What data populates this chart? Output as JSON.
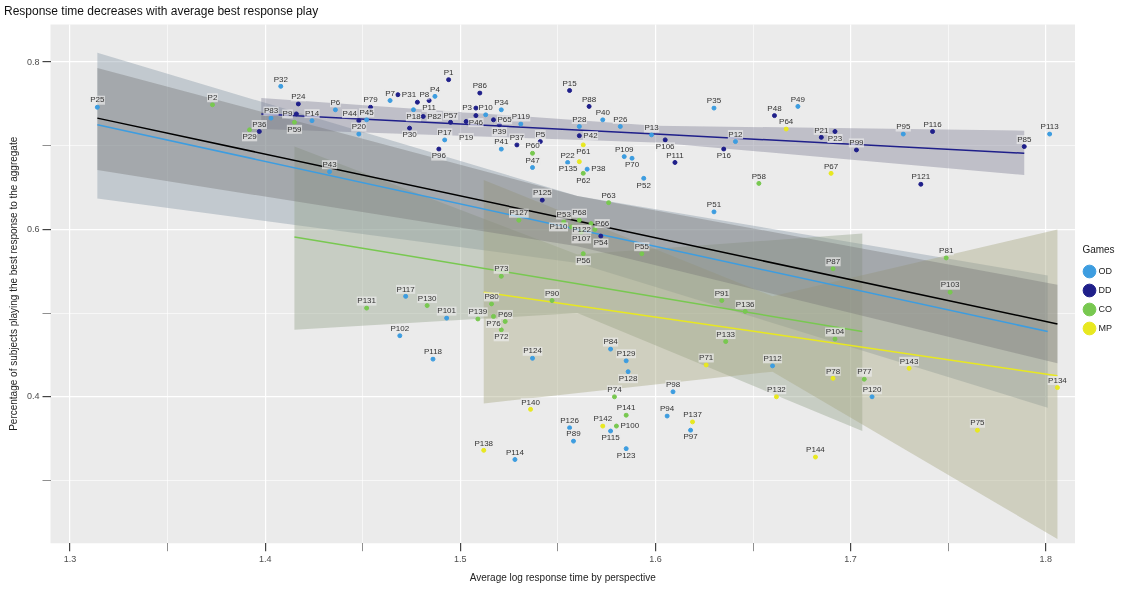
{
  "chart_data": {
    "type": "scatter",
    "title": "Response time decreases with average best response play",
    "xlabel": "Average log response time by perspective",
    "ylabel": "Percentage of subjects playing the best response to the aggregate",
    "legend_title": "Games",
    "legend": "right",
    "grid": true,
    "marker": "circle",
    "xlim": [
      1.29,
      1.815
    ],
    "xticks": [
      1.3,
      {
        "value": 1.35,
        "label": null
      },
      1.4,
      {
        "value": 1.45,
        "label": null
      },
      1.5,
      {
        "value": 1.55,
        "label": null
      },
      1.6,
      {
        "value": 1.65,
        "label": null
      },
      1.7,
      {
        "value": 1.75,
        "label": null
      },
      1.8
    ],
    "ylim": [
      0.225,
      0.845
    ],
    "yticks": [
      {
        "value": 0.3,
        "label": null
      },
      0.4,
      {
        "value": 0.5,
        "label": null
      },
      0.6,
      {
        "value": 0.7,
        "label": null
      },
      0.8
    ],
    "series": [
      {
        "type": "line",
        "marker": "none",
        "color": "#3d9de0",
        "x": [
          1.314,
          1.56,
          1.801
        ],
        "values": [
          0.725,
          0.6,
          0.478
        ],
        "lower": [
          0.637,
          0.56,
          0.387
        ],
        "upper": [
          0.811,
          0.64,
          0.545
        ]
      },
      {
        "type": "line",
        "marker": "none",
        "color": "#1f1f8a",
        "x": [
          1.398,
          1.6,
          1.789
        ],
        "values": [
          0.738,
          0.714,
          0.691
        ],
        "lower": [
          0.72,
          0.704,
          0.665
        ],
        "upper": [
          0.757,
          0.724,
          0.718
        ]
      },
      {
        "type": "line",
        "marker": "none",
        "color": "#78c850",
        "x": [
          1.415,
          1.56,
          1.706
        ],
        "values": [
          0.591,
          0.535,
          0.478
        ],
        "lower": [
          0.48,
          0.5,
          0.359
        ],
        "upper": [
          0.699,
          0.57,
          0.595
        ]
      },
      {
        "type": "line",
        "marker": "none",
        "color": "#e8e820",
        "x": [
          1.512,
          1.66,
          1.806
        ],
        "values": [
          0.525,
          0.475,
          0.425
        ],
        "lower": [
          0.392,
          0.43,
          0.23
        ],
        "upper": [
          0.659,
          0.52,
          0.6
        ]
      },
      {
        "type": "line",
        "marker": "none",
        "color": "#000000",
        "x": [
          1.314,
          1.56,
          1.806
        ],
        "values": [
          0.733,
          0.61,
          0.487
        ],
        "lower": [
          0.671,
          0.58,
          0.44
        ],
        "upper": [
          0.793,
          0.64,
          0.534
        ]
      },
      {
        "type": "scatter",
        "name": "OD",
        "color": "#3d9de0",
        "x": [
          1.314,
          1.408,
          1.403,
          1.424,
          1.436,
          1.452,
          1.448,
          1.464,
          1.433,
          1.472,
          1.469,
          1.487,
          1.476,
          1.521,
          1.513,
          1.531,
          1.561,
          1.521,
          1.573,
          1.582,
          1.598,
          1.641,
          1.63,
          1.555,
          1.565,
          1.537,
          1.584,
          1.588,
          1.594,
          1.63,
          1.493,
          1.486,
          1.537,
          1.577,
          1.585,
          1.586,
          1.609,
          1.606,
          1.618,
          1.556,
          1.577,
          1.558,
          1.585,
          1.528,
          1.66,
          1.711,
          1.673,
          1.727,
          1.802,
          1.492
        ],
        "values": [
          0.746,
          0.771,
          0.733,
          0.73,
          0.743,
          0.731,
          0.714,
          0.754,
          0.669,
          0.52,
          0.473,
          0.759,
          0.743,
          0.743,
          0.737,
          0.726,
          0.723,
          0.696,
          0.731,
          0.723,
          0.713,
          0.705,
          0.745,
          0.68,
          0.672,
          0.674,
          0.687,
          0.685,
          0.661,
          0.621,
          0.494,
          0.445,
          0.446,
          0.457,
          0.443,
          0.43,
          0.406,
          0.377,
          0.36,
          0.363,
          0.359,
          0.347,
          0.338,
          0.325,
          0.437,
          0.4,
          0.747,
          0.714,
          0.714,
          0.707
        ],
        "value_labels": [
          "P25",
          "P32",
          "P83",
          "P14",
          "P6",
          "P45",
          "P20",
          "P7",
          "P43",
          "P117",
          "P102",
          "P4",
          "P18",
          "P34",
          "P10",
          "P119",
          "P28",
          "P41",
          "P40",
          "P26",
          "P13",
          "P12",
          "P35",
          "P22",
          "P38",
          "P47",
          "P109",
          "P70",
          "P52",
          "P51",
          "P101",
          "P118",
          "P124",
          "P84",
          "P129",
          "P128",
          "P98",
          "P94",
          "P97",
          "P126",
          "P115",
          "P89",
          "P123",
          "P114",
          "P112",
          "P120",
          "P49",
          "P95",
          "P113",
          "P17"
        ]
      },
      {
        "type": "scatter",
        "name": "DD",
        "color": "#1f1f8a",
        "x": [
          1.417,
          1.416,
          1.397,
          1.454,
          1.448,
          1.468,
          1.474,
          1.494,
          1.51,
          1.556,
          1.566,
          1.484,
          1.478,
          1.481,
          1.508,
          1.508,
          1.495,
          1.503,
          1.517,
          1.52,
          1.561,
          1.541,
          1.529,
          1.489,
          1.605,
          1.635,
          1.61,
          1.542,
          1.572,
          1.661,
          1.685,
          1.692,
          1.703,
          1.742,
          1.789,
          1.736
        ],
        "values": [
          0.75,
          0.738,
          0.717,
          0.746,
          0.73,
          0.761,
          0.721,
          0.779,
          0.763,
          0.766,
          0.747,
          0.754,
          0.752,
          0.735,
          0.745,
          0.736,
          0.728,
          0.729,
          0.731,
          0.725,
          0.712,
          0.705,
          0.701,
          0.696,
          0.707,
          0.696,
          0.68,
          0.635,
          0.592,
          0.736,
          0.71,
          0.717,
          0.695,
          0.717,
          0.699,
          0.654
        ],
        "value_labels": [
          "P24",
          "P9",
          "P36",
          "P79",
          "P44",
          "P31",
          "P30",
          "P1",
          "P86",
          "P15",
          "P88",
          "P11",
          "P8",
          "P82",
          "P3",
          "P46",
          "P57",
          "P19",
          "P65",
          "P39",
          "P42",
          "P5",
          "P37",
          "P96",
          "P106",
          "P16",
          "P111",
          "P125",
          "P54",
          "P48",
          "P21",
          "P23",
          "P99",
          "P116",
          "P85",
          "P121"
        ]
      },
      {
        "type": "scatter",
        "name": "CO",
        "color": "#78c850",
        "x": [
          1.373,
          1.415,
          1.392,
          1.452,
          1.537,
          1.563,
          1.576,
          1.653,
          1.53,
          1.553,
          1.561,
          1.567,
          1.557,
          1.562,
          1.569,
          1.563,
          1.593,
          1.521,
          1.749,
          1.691,
          1.751,
          1.483,
          1.509,
          1.516,
          1.517,
          1.523,
          1.521,
          1.547,
          1.634,
          1.646,
          1.636,
          1.579,
          1.585,
          1.58,
          1.692,
          1.707
        ],
        "values": [
          0.749,
          0.728,
          0.719,
          0.506,
          0.691,
          0.667,
          0.632,
          0.655,
          0.611,
          0.609,
          0.611,
          0.607,
          0.603,
          0.597,
          0.6,
          0.571,
          0.571,
          0.544,
          0.566,
          0.553,
          0.525,
          0.509,
          0.493,
          0.511,
          0.496,
          0.49,
          0.48,
          0.515,
          0.515,
          0.502,
          0.466,
          0.4,
          0.378,
          0.365,
          0.469,
          0.421
        ],
        "value_labels": [
          "P2",
          "P59",
          "P29",
          "P131",
          "P60",
          "P62",
          "P63",
          "P58",
          "P127",
          "P53",
          "P68",
          "P66",
          "P110",
          "P107",
          "P122",
          "P56",
          "P55",
          "P73",
          "P81",
          "P87",
          "P103",
          "P130",
          "P139",
          "P80",
          "P76",
          "P69",
          "P72",
          "P90",
          "P91",
          "P136",
          "P133",
          "P74",
          "P141",
          "P100",
          "P104",
          "P77"
        ]
      },
      {
        "type": "scatter",
        "name": "MP",
        "color": "#e8e820",
        "x": [
          1.563,
          1.561,
          1.667,
          1.69,
          1.626,
          1.536,
          1.619,
          1.573,
          1.512,
          1.691,
          1.73,
          1.806,
          1.662,
          1.765,
          1.682
        ],
        "values": [
          0.701,
          0.681,
          0.72,
          0.667,
          0.438,
          0.385,
          0.37,
          0.365,
          0.336,
          0.422,
          0.434,
          0.411,
          0.4,
          0.36,
          0.328
        ],
        "value_labels": [
          "P61",
          "P135",
          "P64",
          "P67",
          "P71",
          "P140",
          "P137",
          "P142",
          "P138",
          "P78",
          "P143",
          "P134",
          "P132",
          "P75",
          "P144"
        ]
      }
    ]
  }
}
